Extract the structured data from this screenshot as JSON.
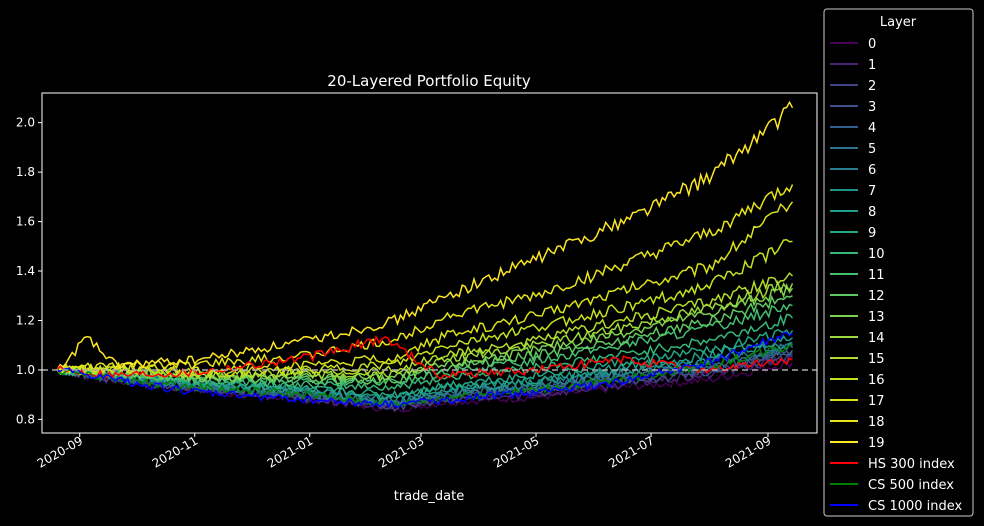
{
  "chart_data": {
    "type": "line",
    "title": "20-Layered Portfolio Equity",
    "xlabel": "trade_date",
    "ylabel": "",
    "x_range": [
      "2020-08-12",
      "2021-09-27"
    ],
    "ylim": [
      0.745,
      2.12
    ],
    "grid": false,
    "reference_line": {
      "y": 1.0,
      "style": "dashed",
      "color": "#aaaaaa"
    },
    "x_ticks": [
      "2020-09",
      "2020-11",
      "2021-01",
      "2021-03",
      "2021-05",
      "2021-07",
      "2021-09"
    ],
    "y_ticks": [
      "0.8",
      "1.0",
      "1.2",
      "1.4",
      "1.6",
      "1.8",
      "2.0"
    ],
    "legend": {
      "title": "Layer",
      "placement": "outside-right"
    },
    "series": [
      {
        "name": "0",
        "color": "#440154",
        "points": [
          [
            "2020-08-20",
            1.0
          ],
          [
            "2020-09-20",
            0.96
          ],
          [
            "2020-11-01",
            0.92
          ],
          [
            "2021-01-01",
            0.88
          ],
          [
            "2021-02-15",
            0.84
          ],
          [
            "2021-03-15",
            0.87
          ],
          [
            "2021-05-01",
            0.89
          ],
          [
            "2021-06-15",
            0.93
          ],
          [
            "2021-08-01",
            0.96
          ],
          [
            "2021-09-14",
            1.03
          ]
        ]
      },
      {
        "name": "1",
        "color": "#482475",
        "points": [
          [
            "2020-08-20",
            1.0
          ],
          [
            "2020-09-20",
            0.96
          ],
          [
            "2020-11-01",
            0.92
          ],
          [
            "2021-01-01",
            0.88
          ],
          [
            "2021-02-15",
            0.85
          ],
          [
            "2021-03-15",
            0.88
          ],
          [
            "2021-05-01",
            0.9
          ],
          [
            "2021-06-15",
            0.94
          ],
          [
            "2021-08-01",
            0.98
          ],
          [
            "2021-09-14",
            1.05
          ]
        ]
      },
      {
        "name": "2",
        "color": "#414487",
        "points": [
          [
            "2020-08-20",
            1.0
          ],
          [
            "2020-09-20",
            0.96
          ],
          [
            "2020-11-01",
            0.93
          ],
          [
            "2021-01-01",
            0.89
          ],
          [
            "2021-02-15",
            0.85
          ],
          [
            "2021-03-15",
            0.88
          ],
          [
            "2021-05-01",
            0.91
          ],
          [
            "2021-06-15",
            0.95
          ],
          [
            "2021-08-01",
            0.99
          ],
          [
            "2021-09-14",
            1.06
          ]
        ]
      },
      {
        "name": "3",
        "color": "#3b528b",
        "points": [
          [
            "2020-08-20",
            1.0
          ],
          [
            "2020-09-20",
            0.97
          ],
          [
            "2020-11-01",
            0.93
          ],
          [
            "2021-01-01",
            0.89
          ],
          [
            "2021-02-15",
            0.86
          ],
          [
            "2021-03-15",
            0.89
          ],
          [
            "2021-05-01",
            0.92
          ],
          [
            "2021-06-15",
            0.96
          ],
          [
            "2021-08-01",
            1.0
          ],
          [
            "2021-09-14",
            1.07
          ]
        ]
      },
      {
        "name": "4",
        "color": "#355f8d",
        "points": [
          [
            "2020-08-20",
            1.0
          ],
          [
            "2020-09-20",
            0.97
          ],
          [
            "2020-11-01",
            0.93
          ],
          [
            "2021-01-01",
            0.9
          ],
          [
            "2021-02-15",
            0.86
          ],
          [
            "2021-03-15",
            0.9
          ],
          [
            "2021-05-01",
            0.93
          ],
          [
            "2021-06-15",
            0.97
          ],
          [
            "2021-08-01",
            1.01
          ],
          [
            "2021-09-14",
            1.08
          ]
        ]
      },
      {
        "name": "5",
        "color": "#2c728e",
        "points": [
          [
            "2020-08-20",
            1.0
          ],
          [
            "2020-09-20",
            0.97
          ],
          [
            "2020-11-01",
            0.94
          ],
          [
            "2021-01-01",
            0.9
          ],
          [
            "2021-02-15",
            0.87
          ],
          [
            "2021-03-15",
            0.9
          ],
          [
            "2021-05-01",
            0.93
          ],
          [
            "2021-06-15",
            0.98
          ],
          [
            "2021-08-01",
            1.02
          ],
          [
            "2021-09-14",
            1.09
          ]
        ]
      },
      {
        "name": "6",
        "color": "#287d8e",
        "points": [
          [
            "2020-08-20",
            1.0
          ],
          [
            "2020-09-20",
            0.97
          ],
          [
            "2020-11-01",
            0.94
          ],
          [
            "2021-01-01",
            0.91
          ],
          [
            "2021-02-15",
            0.87
          ],
          [
            "2021-03-15",
            0.91
          ],
          [
            "2021-05-01",
            0.94
          ],
          [
            "2021-06-15",
            0.99
          ],
          [
            "2021-08-01",
            1.03
          ],
          [
            "2021-09-14",
            1.1
          ]
        ]
      },
      {
        "name": "7",
        "color": "#21918c",
        "points": [
          [
            "2020-08-20",
            1.0
          ],
          [
            "2020-09-20",
            0.98
          ],
          [
            "2020-11-01",
            0.94
          ],
          [
            "2021-01-01",
            0.91
          ],
          [
            "2021-02-15",
            0.88
          ],
          [
            "2021-03-15",
            0.92
          ],
          [
            "2021-05-01",
            0.95
          ],
          [
            "2021-06-15",
            1.0
          ],
          [
            "2021-08-01",
            1.04
          ],
          [
            "2021-09-14",
            1.11
          ]
        ]
      },
      {
        "name": "8",
        "color": "#1f9e89",
        "points": [
          [
            "2020-08-20",
            1.0
          ],
          [
            "2020-09-20",
            0.98
          ],
          [
            "2020-11-01",
            0.95
          ],
          [
            "2021-01-01",
            0.92
          ],
          [
            "2021-02-15",
            0.89
          ],
          [
            "2021-03-15",
            0.93
          ],
          [
            "2021-05-01",
            0.96
          ],
          [
            "2021-06-15",
            1.01
          ],
          [
            "2021-08-01",
            1.06
          ],
          [
            "2021-09-14",
            1.13
          ]
        ]
      },
      {
        "name": "9",
        "color": "#22a884",
        "points": [
          [
            "2020-08-20",
            1.0
          ],
          [
            "2020-09-20",
            0.98
          ],
          [
            "2020-11-01",
            0.95
          ],
          [
            "2021-01-01",
            0.92
          ],
          [
            "2021-02-15",
            0.9
          ],
          [
            "2021-03-15",
            0.94
          ],
          [
            "2021-05-01",
            0.98
          ],
          [
            "2021-06-15",
            1.03
          ],
          [
            "2021-08-01",
            1.08
          ],
          [
            "2021-09-14",
            1.16
          ]
        ]
      },
      {
        "name": "10",
        "color": "#35b779",
        "points": [
          [
            "2020-08-20",
            1.0
          ],
          [
            "2020-09-20",
            0.98
          ],
          [
            "2020-11-01",
            0.96
          ],
          [
            "2021-01-01",
            0.94
          ],
          [
            "2021-02-15",
            0.93
          ],
          [
            "2021-03-15",
            0.97
          ],
          [
            "2021-05-01",
            1.01
          ],
          [
            "2021-06-15",
            1.06
          ],
          [
            "2021-08-01",
            1.12
          ],
          [
            "2021-09-14",
            1.21
          ]
        ]
      },
      {
        "name": "11",
        "color": "#44bf70",
        "points": [
          [
            "2020-08-20",
            1.0
          ],
          [
            "2020-09-20",
            0.99
          ],
          [
            "2020-11-01",
            0.96
          ],
          [
            "2021-01-01",
            0.95
          ],
          [
            "2021-02-15",
            0.95
          ],
          [
            "2021-03-15",
            0.99
          ],
          [
            "2021-05-01",
            1.04
          ],
          [
            "2021-06-15",
            1.1
          ],
          [
            "2021-08-01",
            1.17
          ],
          [
            "2021-09-14",
            1.26
          ]
        ]
      },
      {
        "name": "12",
        "color": "#5ec962",
        "points": [
          [
            "2020-08-20",
            1.0
          ],
          [
            "2020-09-20",
            0.99
          ],
          [
            "2020-11-01",
            0.97
          ],
          [
            "2021-01-01",
            0.96
          ],
          [
            "2021-02-15",
            0.96
          ],
          [
            "2021-03-15",
            1.01
          ],
          [
            "2021-05-01",
            1.06
          ],
          [
            "2021-06-15",
            1.12
          ],
          [
            "2021-08-01",
            1.2
          ],
          [
            "2021-09-14",
            1.3
          ]
        ]
      },
      {
        "name": "13",
        "color": "#7ad151",
        "points": [
          [
            "2020-08-20",
            1.0
          ],
          [
            "2020-09-20",
            0.99
          ],
          [
            "2020-11-01",
            0.97
          ],
          [
            "2021-01-01",
            0.97
          ],
          [
            "2021-02-15",
            0.97
          ],
          [
            "2021-03-15",
            1.02
          ],
          [
            "2021-05-01",
            1.08
          ],
          [
            "2021-06-15",
            1.15
          ],
          [
            "2021-08-01",
            1.23
          ],
          [
            "2021-09-14",
            1.33
          ]
        ]
      },
      {
        "name": "14",
        "color": "#9bd93c",
        "points": [
          [
            "2020-08-20",
            1.0
          ],
          [
            "2020-09-20",
            1.0
          ],
          [
            "2020-11-01",
            0.98
          ],
          [
            "2021-01-01",
            0.98
          ],
          [
            "2021-02-15",
            0.98
          ],
          [
            "2021-03-15",
            1.04
          ],
          [
            "2021-05-01",
            1.1
          ],
          [
            "2021-06-15",
            1.17
          ],
          [
            "2021-08-01",
            1.25
          ],
          [
            "2021-09-14",
            1.35
          ]
        ]
      },
      {
        "name": "15",
        "color": "#b3dc2b",
        "points": [
          [
            "2020-08-20",
            1.0
          ],
          [
            "2020-09-20",
            1.0
          ],
          [
            "2020-11-01",
            0.98
          ],
          [
            "2021-01-01",
            0.99
          ],
          [
            "2021-02-15",
            1.0
          ],
          [
            "2021-03-15",
            1.06
          ],
          [
            "2021-05-01",
            1.12
          ],
          [
            "2021-06-15",
            1.2
          ],
          [
            "2021-08-01",
            1.28
          ],
          [
            "2021-09-14",
            1.38
          ]
        ]
      },
      {
        "name": "16",
        "color": "#c6e020",
        "points": [
          [
            "2020-08-20",
            1.0
          ],
          [
            "2020-09-20",
            1.0
          ],
          [
            "2020-11-01",
            0.99
          ],
          [
            "2021-01-01",
            1.0
          ],
          [
            "2021-02-15",
            1.02
          ],
          [
            "2021-03-15",
            1.1
          ],
          [
            "2021-05-01",
            1.17
          ],
          [
            "2021-06-15",
            1.25
          ],
          [
            "2021-08-01",
            1.34
          ],
          [
            "2021-09-14",
            1.52
          ]
        ]
      },
      {
        "name": "17",
        "color": "#d8e219",
        "points": [
          [
            "2020-08-20",
            1.0
          ],
          [
            "2020-09-20",
            1.01
          ],
          [
            "2020-11-01",
            1.0
          ],
          [
            "2021-01-01",
            1.02
          ],
          [
            "2021-02-15",
            1.05
          ],
          [
            "2021-03-15",
            1.14
          ],
          [
            "2021-05-01",
            1.22
          ],
          [
            "2021-06-15",
            1.32
          ],
          [
            "2021-08-01",
            1.42
          ],
          [
            "2021-09-14",
            1.68
          ]
        ]
      },
      {
        "name": "18",
        "color": "#e6e419",
        "points": [
          [
            "2020-08-20",
            1.0
          ],
          [
            "2020-09-20",
            1.02
          ],
          [
            "2020-11-01",
            1.02
          ],
          [
            "2021-01-01",
            1.06
          ],
          [
            "2021-02-15",
            1.12
          ],
          [
            "2021-03-15",
            1.22
          ],
          [
            "2021-05-01",
            1.3
          ],
          [
            "2021-06-15",
            1.42
          ],
          [
            "2021-08-01",
            1.55
          ],
          [
            "2021-09-14",
            1.75
          ]
        ]
      },
      {
        "name": "19",
        "color": "#fde725",
        "points": [
          [
            "2020-08-20",
            1.0
          ],
          [
            "2020-09-05",
            1.13
          ],
          [
            "2020-09-20",
            1.02
          ],
          [
            "2020-11-01",
            1.04
          ],
          [
            "2021-01-01",
            1.12
          ],
          [
            "2021-02-15",
            1.2
          ],
          [
            "2021-03-15",
            1.3
          ],
          [
            "2021-05-01",
            1.45
          ],
          [
            "2021-06-15",
            1.6
          ],
          [
            "2021-08-01",
            1.78
          ],
          [
            "2021-09-14",
            2.06
          ]
        ]
      },
      {
        "name": "HS 300 index",
        "color": "#ff0000",
        "points": [
          [
            "2020-08-20",
            1.0
          ],
          [
            "2020-09-20",
            0.98
          ],
          [
            "2020-11-01",
            0.99
          ],
          [
            "2021-01-01",
            1.05
          ],
          [
            "2021-02-10",
            1.13
          ],
          [
            "2021-03-10",
            0.98
          ],
          [
            "2021-05-01",
            1.0
          ],
          [
            "2021-06-15",
            1.04
          ],
          [
            "2021-08-01",
            1.0
          ],
          [
            "2021-09-14",
            1.04
          ]
        ]
      },
      {
        "name": "CS 500 index",
        "color": "#008000",
        "points": [
          [
            "2020-08-20",
            1.0
          ],
          [
            "2020-09-20",
            0.96
          ],
          [
            "2020-11-01",
            0.93
          ],
          [
            "2021-01-01",
            0.9
          ],
          [
            "2021-02-15",
            0.86
          ],
          [
            "2021-03-15",
            0.89
          ],
          [
            "2021-05-01",
            0.92
          ],
          [
            "2021-06-15",
            0.96
          ],
          [
            "2021-08-01",
            1.02
          ],
          [
            "2021-09-14",
            1.1
          ]
        ]
      },
      {
        "name": "CS 1000 index",
        "color": "#0000ff",
        "points": [
          [
            "2020-08-20",
            1.0
          ],
          [
            "2020-09-20",
            0.96
          ],
          [
            "2020-11-01",
            0.91
          ],
          [
            "2021-01-01",
            0.88
          ],
          [
            "2021-02-15",
            0.86
          ],
          [
            "2021-03-15",
            0.88
          ],
          [
            "2021-05-01",
            0.91
          ],
          [
            "2021-06-15",
            0.95
          ],
          [
            "2021-08-01",
            1.03
          ],
          [
            "2021-09-14",
            1.15
          ]
        ]
      }
    ]
  }
}
